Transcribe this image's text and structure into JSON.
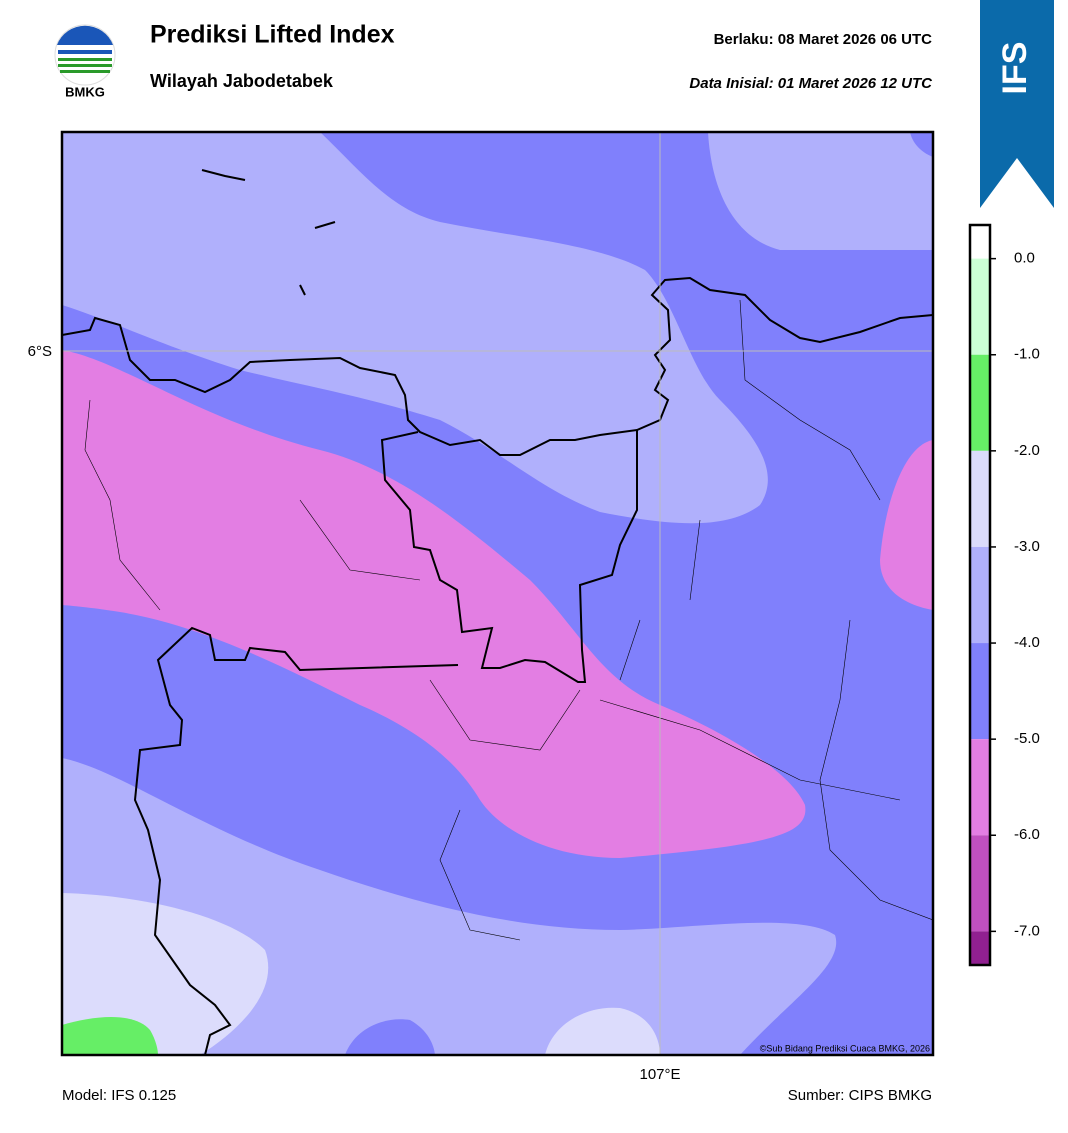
{
  "header": {
    "logo_text": "BMKG",
    "title": "Prediksi Lifted Index",
    "subtitle": "Wilayah Jabodetabek",
    "valid": "Berlaku:  08 Maret 2026 06 UTC",
    "init": "Data Inisial:  01 Maret 2026 12 UTC",
    "model_badge": "IFS"
  },
  "map": {
    "lat_label": "6°S",
    "lon_label": "107°E",
    "credit": "©Sub Bidang Prediksi Cuaca BMKG, 2026"
  },
  "colorbar": {
    "lim": [
      -7.35,
      0.35
    ],
    "bounds": [
      0.35,
      0,
      -1,
      -2,
      -3,
      -4,
      -5,
      -6,
      -7,
      -7.35
    ],
    "colors": [
      "#ffffff",
      "#ccffd6",
      "#66ee66",
      "#dcdcfc",
      "#b0b0fc",
      "#8080fc",
      "#e37ee3",
      "#c050c0",
      "#902090"
    ],
    "ticks": [
      {
        "value": 0,
        "label": "0.0"
      },
      {
        "value": -1,
        "label": "-1.0"
      },
      {
        "value": -2,
        "label": "-2.0"
      },
      {
        "value": -3,
        "label": "-3.0"
      },
      {
        "value": -4,
        "label": "-4.0"
      },
      {
        "value": -5,
        "label": "-5.0"
      },
      {
        "value": -6,
        "label": "-6.0"
      },
      {
        "value": -7,
        "label": "-7.0"
      }
    ]
  },
  "footer": {
    "model": "Model: IFS 0.125",
    "source": "Sumber: CIPS BMKG"
  }
}
